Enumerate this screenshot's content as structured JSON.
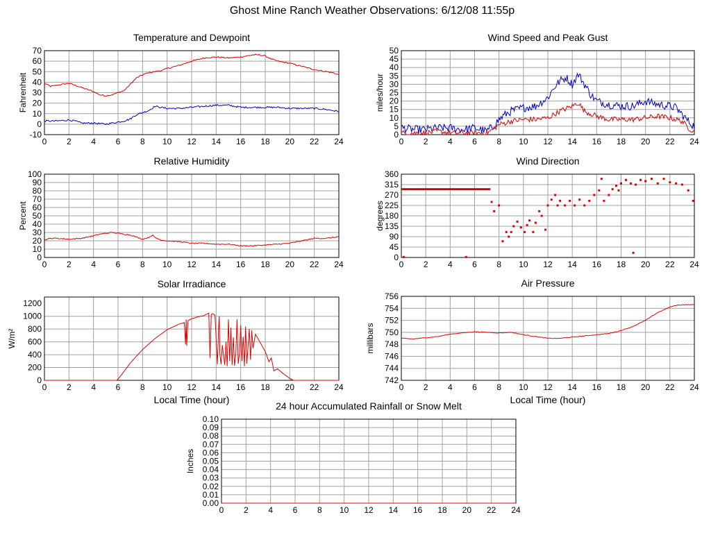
{
  "title": "Ghost Mine Ranch Weather Observations: 6/12/08 11:55p",
  "colors": {
    "red": "#dd0000",
    "blue": "#0000cc",
    "grid": "#a0a0a0"
  },
  "chart_data": [
    {
      "id": "temp",
      "type": "line",
      "title": "Temperature and Dewpoint",
      "xlabel": "",
      "ylabel": "Fahrenheit",
      "xlim": [
        0,
        24
      ],
      "ylim": [
        -10,
        70
      ],
      "x_ticks": [
        0,
        2,
        4,
        6,
        8,
        10,
        12,
        14,
        16,
        18,
        20,
        22,
        24
      ],
      "y_ticks": [
        "-10",
        "0",
        "10",
        "20",
        "30",
        "40",
        "50",
        "60",
        "70"
      ],
      "grid": true,
      "series": [
        {
          "color": "red",
          "jitter": 0.6,
          "x": [
            0,
            0.5,
            1,
            1.5,
            2,
            2.5,
            3,
            3.5,
            4,
            4.5,
            5,
            5.5,
            6,
            6.5,
            7,
            7.5,
            8,
            8.5,
            9,
            9.5,
            10,
            11,
            12,
            13,
            14,
            15,
            16,
            16.5,
            17,
            17.5,
            18,
            18.5,
            19,
            20,
            21,
            22,
            23,
            23.5,
            24
          ],
          "y": [
            39,
            36,
            37,
            38,
            39,
            37,
            35,
            33,
            31,
            28,
            27,
            28,
            30,
            32,
            38,
            44,
            47,
            49,
            50,
            51,
            53,
            56,
            60,
            63,
            64,
            63,
            64,
            65,
            66,
            66,
            65,
            62,
            60,
            58,
            55,
            52,
            50,
            49,
            47
          ]
        },
        {
          "color": "blue",
          "jitter": 0.8,
          "x": [
            0,
            1,
            2,
            2.5,
            3,
            4,
            5,
            5.5,
            6,
            6.5,
            7,
            7.5,
            8,
            8.5,
            9,
            9.5,
            10,
            11,
            12,
            13,
            14,
            15,
            16,
            17,
            18,
            19,
            20,
            21,
            22,
            23,
            24
          ],
          "y": [
            3,
            3,
            4,
            3,
            1,
            1,
            0,
            1,
            2,
            3,
            5,
            9,
            11,
            13,
            17,
            16,
            15,
            15,
            16,
            17,
            18,
            18,
            16,
            16,
            16,
            16,
            15,
            15,
            15,
            14,
            12
          ]
        }
      ]
    },
    {
      "id": "wind",
      "type": "line",
      "title": "Wind Speed and Peak Gust",
      "xlabel": "",
      "ylabel": "miles/hour",
      "xlim": [
        0,
        24
      ],
      "ylim": [
        0,
        50
      ],
      "x_ticks": [
        0,
        2,
        4,
        6,
        8,
        10,
        12,
        14,
        16,
        18,
        20,
        22,
        24
      ],
      "y_ticks": [
        "0",
        "5",
        "10",
        "15",
        "20",
        "25",
        "30",
        "35",
        "40",
        "45",
        "50"
      ],
      "grid": true,
      "series": [
        {
          "color": "blue",
          "jitter": 2.5,
          "x": [
            0,
            1,
            2,
            3,
            4,
            5,
            6,
            6.5,
            7,
            7.5,
            8,
            8.5,
            9,
            10,
            11,
            12,
            12.5,
            13,
            13.5,
            14,
            14.5,
            15,
            15.5,
            16,
            17,
            18,
            19,
            20,
            21,
            22,
            22.5,
            23,
            23.5,
            24
          ],
          "y": [
            4,
            3,
            3,
            4,
            4,
            3,
            4,
            3,
            2,
            5,
            9,
            12,
            14,
            16,
            17,
            22,
            28,
            32,
            34,
            30,
            36,
            30,
            24,
            20,
            18,
            17,
            17,
            20,
            18,
            17,
            16,
            12,
            8,
            5
          ]
        },
        {
          "color": "red",
          "jitter": 1.6,
          "x": [
            0,
            1,
            2,
            3,
            4,
            5,
            6,
            6.5,
            7,
            7.5,
            8,
            9,
            10,
            11,
            12,
            13,
            14,
            14.5,
            15,
            16,
            17,
            18,
            19,
            20,
            21,
            22,
            23,
            23.5,
            24
          ],
          "y": [
            1,
            1,
            1,
            2,
            1,
            1,
            1,
            1,
            1,
            3,
            6,
            8,
            9,
            9,
            10,
            14,
            17,
            19,
            14,
            11,
            9,
            9,
            9,
            10,
            11,
            10,
            8,
            4,
            2
          ]
        }
      ]
    },
    {
      "id": "rh",
      "type": "line",
      "title": "Relative Humidity",
      "xlabel": "",
      "ylabel": "Percent",
      "xlim": [
        0,
        24
      ],
      "ylim": [
        0,
        100
      ],
      "x_ticks": [
        0,
        2,
        4,
        6,
        8,
        10,
        12,
        14,
        16,
        18,
        20,
        22,
        24
      ],
      "y_ticks": [
        "0",
        "10",
        "20",
        "30",
        "40",
        "50",
        "60",
        "70",
        "80",
        "90",
        "100"
      ],
      "grid": true,
      "series": [
        {
          "color": "red",
          "jitter": 0.6,
          "x": [
            0,
            0.5,
            1,
            2,
            3,
            4,
            4.5,
            5,
            5.5,
            6,
            7,
            8,
            8.5,
            8.8,
            9,
            9.5,
            10,
            11,
            12,
            13,
            14,
            15,
            16,
            17,
            18,
            19,
            20,
            21,
            22,
            23,
            24
          ],
          "y": [
            21,
            23,
            23,
            22,
            23,
            26,
            28,
            29,
            30,
            29,
            27,
            22,
            24,
            27,
            24,
            21,
            20,
            19,
            17,
            17,
            16,
            16,
            14,
            14,
            15,
            16,
            17,
            20,
            23,
            23,
            25
          ]
        }
      ]
    },
    {
      "id": "dir",
      "type": "scatter",
      "title": "Wind Direction",
      "xlabel": "",
      "ylabel": "degrees",
      "xlim": [
        0,
        24
      ],
      "ylim": [
        0,
        360
      ],
      "x_ticks": [
        0,
        2,
        4,
        6,
        8,
        10,
        12,
        14,
        16,
        18,
        20,
        22,
        24
      ],
      "y_ticks": [
        "0",
        "45",
        "90",
        "135",
        "180",
        "225",
        "270",
        "315",
        "360"
      ],
      "grid": true,
      "series": [
        {
          "color": "red",
          "x": [
            7.4,
            7.6,
            8.0,
            8.3,
            8.6,
            8.8,
            9.0,
            9.2,
            9.5,
            9.8,
            10.1,
            10.3,
            10.5,
            10.8,
            11.0,
            11.3,
            11.5,
            11.8,
            12.0,
            12.3,
            12.6,
            13.0,
            13.4,
            13.8,
            14.2,
            14.6,
            15.0,
            15.4,
            15.8,
            16.2,
            16.6,
            17.0,
            17.3,
            17.6,
            18.0,
            18.4,
            18.8,
            19.2,
            19.6,
            20.0,
            20.5,
            21.0,
            21.5,
            22.0,
            22.5,
            23.0,
            23.5,
            23.9,
            19.0,
            5.3,
            0.2,
            16.4,
            17.8,
            12.8
          ],
          "y": [
            240,
            200,
            225,
            70,
            110,
            90,
            110,
            135,
            155,
            130,
            110,
            140,
            160,
            110,
            150,
            200,
            180,
            120,
            225,
            250,
            270,
            245,
            225,
            245,
            225,
            250,
            225,
            245,
            270,
            290,
            245,
            270,
            295,
            310,
            320,
            335,
            320,
            315,
            335,
            330,
            340,
            320,
            340,
            325,
            320,
            315,
            290,
            245,
            20,
            2,
            2,
            340,
            290,
            225
          ]
        },
        {
          "color": "red",
          "kind": "segment",
          "x": [
            0,
            7.3
          ],
          "y": [
            295,
            295
          ]
        }
      ]
    },
    {
      "id": "solar",
      "type": "line",
      "title": "Solar Irradiance",
      "xlabel": "Local Time (hour)",
      "ylabel": "W/m²",
      "xlim": [
        0,
        24
      ],
      "ylim": [
        0,
        1300
      ],
      "x_ticks": [
        0,
        2,
        4,
        6,
        8,
        10,
        12,
        14,
        16,
        18,
        20,
        22,
        24
      ],
      "y_ticks": [
        "0",
        "200",
        "400",
        "600",
        "800",
        "1000",
        "1200"
      ],
      "grid": true,
      "series": [
        {
          "color": "red",
          "jitter": 0,
          "x": [
            0,
            5.9,
            6.0,
            6.3,
            7,
            8,
            9,
            10,
            11,
            11.4,
            11.5,
            11.55,
            11.6,
            11.7,
            12,
            12.5,
            13,
            13.4,
            13.5,
            13.6,
            13.7,
            13.9,
            14.1,
            14.2,
            14.25,
            14.3,
            14.4,
            14.5,
            14.7,
            14.8,
            14.9,
            15.0,
            15.1,
            15.2,
            15.3,
            15.4,
            15.5,
            15.6,
            15.7,
            15.8,
            15.9,
            16.0,
            16.1,
            16.2,
            16.3,
            16.4,
            16.5,
            16.6,
            16.7,
            16.8,
            16.9,
            17.0,
            17.2,
            17.5,
            18,
            18.3,
            18.5,
            18.7,
            19,
            19.5,
            20.0,
            20.3,
            21,
            24
          ],
          "y": [
            0,
            0,
            20,
            90,
            270,
            480,
            650,
            790,
            880,
            900,
            560,
            950,
            540,
            930,
            960,
            990,
            1010,
            1050,
            350,
            1030,
            1040,
            1020,
            250,
            830,
            1000,
            420,
            250,
            550,
            240,
            600,
            220,
            950,
            300,
            820,
            240,
            670,
            230,
            400,
            950,
            260,
            420,
            860,
            300,
            680,
            220,
            840,
            260,
            540,
            800,
            320,
            780,
            500,
            720,
            620,
            450,
            290,
            350,
            150,
            180,
            100,
            30,
            0,
            0,
            0
          ]
        }
      ]
    },
    {
      "id": "pressure",
      "type": "line",
      "title": "Air Pressure",
      "xlabel": "Local Time (hour)",
      "ylabel": "millibars",
      "xlim": [
        0,
        24
      ],
      "ylim": [
        742,
        756
      ],
      "x_ticks": [
        0,
        2,
        4,
        6,
        8,
        10,
        12,
        14,
        16,
        18,
        20,
        22,
        24
      ],
      "y_ticks": [
        "742",
        "744",
        "746",
        "748",
        "750",
        "752",
        "754",
        "756"
      ],
      "grid": true,
      "series": [
        {
          "color": "red",
          "jitter": 0.05,
          "x": [
            0,
            1,
            2,
            3,
            4,
            5,
            6,
            7,
            8,
            9,
            10,
            11,
            12,
            13,
            14,
            15,
            16,
            17,
            18,
            19,
            20,
            21,
            22,
            22.5,
            23,
            23.5,
            24
          ],
          "y": [
            749.0,
            748.9,
            749.1,
            749.3,
            749.7,
            749.9,
            750.1,
            750.0,
            749.9,
            750.0,
            749.6,
            749.3,
            749.0,
            749.0,
            749.2,
            749.4,
            749.6,
            749.8,
            750.3,
            751.0,
            752.0,
            753.3,
            754.2,
            754.5,
            754.6,
            754.6,
            754.6
          ]
        }
      ]
    },
    {
      "id": "rain",
      "type": "line",
      "title": "24 hour Accumulated Rainfall or Snow Melt",
      "xlabel": "",
      "ylabel": "Inches",
      "xlim": [
        0,
        24
      ],
      "ylim": [
        0,
        0.1
      ],
      "x_ticks": [
        0,
        2,
        4,
        6,
        8,
        10,
        12,
        14,
        16,
        18,
        20,
        22,
        24
      ],
      "y_ticks": [
        "0.00",
        "0.01",
        "0.02",
        "0.03",
        "0.04",
        "0.05",
        "0.06",
        "0.07",
        "0.08",
        "0.09",
        "0.10"
      ],
      "grid": true,
      "series": [
        {
          "color": "red",
          "jitter": 0,
          "x": [
            0,
            24
          ],
          "y": [
            0,
            0
          ]
        }
      ]
    }
  ]
}
